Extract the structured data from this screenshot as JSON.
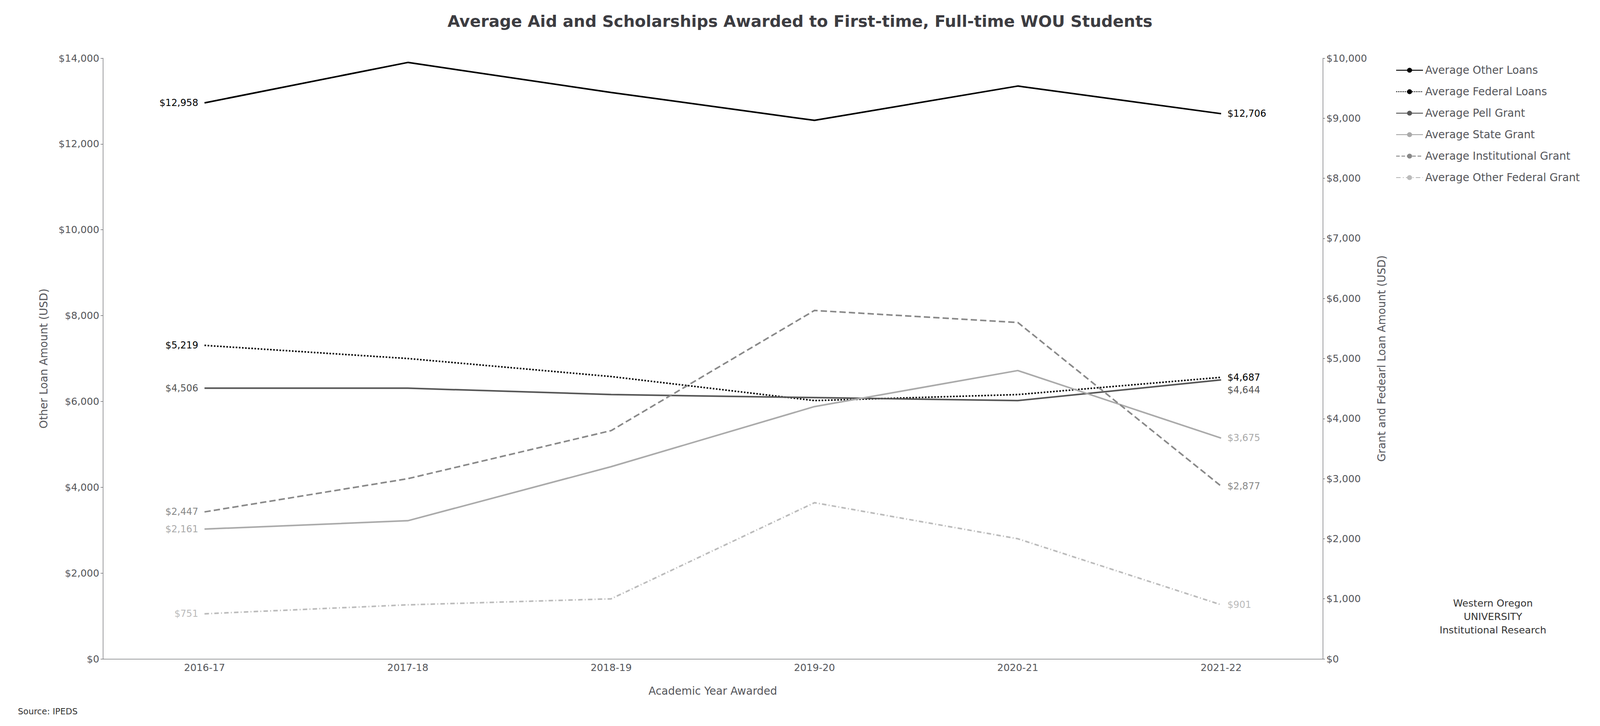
{
  "chart_data": {
    "type": "line",
    "title": "Average Aid and Scholarships Awarded to First-time, Full-time WOU Students",
    "x_label": "Academic Year Awarded",
    "y_label": "Other Loan Amount (USD)",
    "y2_label": "Grant and Fedearl Loan Amount (USD)",
    "categories": [
      "2016-17",
      "2017-18",
      "2018-19",
      "2019-20",
      "2020-21",
      "2021-22"
    ],
    "series": [
      {
        "name": "Average Other Loans",
        "color": "#000000",
        "line_style": "solid",
        "axis": "y",
        "values": [
          12958,
          13900,
          13200,
          12550,
          13350,
          12706
        ],
        "value_labels": [
          "$12,958",
          null,
          null,
          null,
          null,
          "$12,706"
        ]
      },
      {
        "name": "Average Federal Loans",
        "color": "#000000",
        "line_style": "dotted",
        "axis": "y2",
        "values": [
          5219,
          5000,
          4700,
          4300,
          4400,
          4687
        ],
        "value_labels": [
          "$5,219",
          null,
          null,
          null,
          null,
          "$4,687"
        ]
      },
      {
        "name": "Average Pell Grant",
        "color": "#555555",
        "line_style": "solid",
        "axis": "y2",
        "values": [
          4506,
          4506,
          4400,
          4350,
          4300,
          4644
        ],
        "value_labels": [
          "$4,506",
          null,
          null,
          null,
          null,
          "$4,644"
        ]
      },
      {
        "name": "Average State Grant",
        "color": "#aaaaaa",
        "line_style": "solid",
        "axis": "y2",
        "values": [
          2161,
          2300,
          3200,
          4200,
          4800,
          3675
        ],
        "value_labels": [
          "$2,161",
          null,
          null,
          null,
          null,
          "$3,675"
        ]
      },
      {
        "name": "Average Institutional Grant",
        "color": "#888888",
        "line_style": "dashed",
        "axis": "y2",
        "values": [
          2447,
          3000,
          3800,
          5800,
          5600,
          2877
        ],
        "value_labels": [
          "$2,447",
          null,
          null,
          null,
          null,
          "$2,877"
        ]
      },
      {
        "name": "Average Other Federal Grant",
        "color": "#bbbbbb",
        "line_style": "dashdot",
        "axis": "y2",
        "values": [
          751,
          900,
          1000,
          2600,
          2000,
          901
        ],
        "value_labels": [
          "$751",
          null,
          null,
          null,
          null,
          "$901"
        ]
      }
    ],
    "ylim": [
      0,
      14000
    ],
    "yticks": [
      {
        "value": 0,
        "label": "$0"
      },
      {
        "value": 2000,
        "label": "$2,000"
      },
      {
        "value": 4000,
        "label": "$4,000"
      },
      {
        "value": 6000,
        "label": "$6,000"
      },
      {
        "value": 8000,
        "label": "$8,000"
      },
      {
        "value": 10000,
        "label": "$10,000"
      },
      {
        "value": 12000,
        "label": "$12,000"
      },
      {
        "value": 14000,
        "label": "$14,000"
      }
    ],
    "y2lim": [
      0,
      10000
    ],
    "y2ticks": [
      {
        "value": 0,
        "label": "$0"
      },
      {
        "value": 1000,
        "label": "$1,000"
      },
      {
        "value": 2000,
        "label": "$2,000"
      },
      {
        "value": 3000,
        "label": "$3,000"
      },
      {
        "value": 4000,
        "label": "$4,000"
      },
      {
        "value": 5000,
        "label": "$5,000"
      },
      {
        "value": 6000,
        "label": "$6,000"
      },
      {
        "value": 7000,
        "label": "$7,000"
      },
      {
        "value": 8000,
        "label": "$8,000"
      },
      {
        "value": 9000,
        "label": "$9,000"
      },
      {
        "value": 10000,
        "label": "$10,000"
      }
    ],
    "grid": false,
    "legend": "upper right",
    "annotations": [
      "Source: IPEDS",
      "Western Oregon\nUNIVERSITY\nInstitutional Research"
    ]
  }
}
